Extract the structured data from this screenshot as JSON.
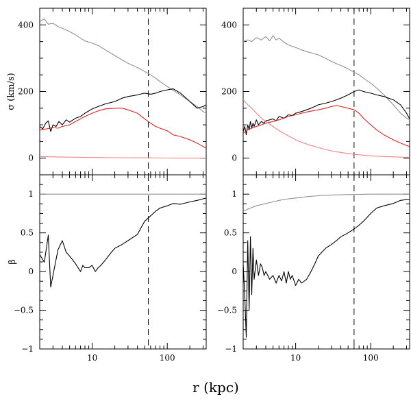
{
  "chart_data": {
    "type": "line",
    "x_scale": "log",
    "grid": false,
    "xlabel": "r (kpc)",
    "x_tick_labels": [
      "10",
      "100"
    ],
    "x_range": [
      2,
      330
    ],
    "panels": [
      {
        "id": "sigma-left",
        "ylabel": "σ (km/s)",
        "y_range": [
          -50,
          450
        ],
        "y_ticks": [
          0,
          200,
          400
        ],
        "y_tick_labels": [
          "0",
          "200",
          "400"
        ],
        "vline_x": 56,
        "series": [
          {
            "color": "#909090",
            "x": [
              2,
              2.3,
              2.6,
              3,
              3.5,
              4,
              5,
              6,
              7,
              8,
              10,
              12,
              15,
              20,
              25,
              30,
              40,
              50,
              60,
              70,
              80,
              100,
              120,
              150,
              200,
              250,
              300,
              330
            ],
            "y": [
              410,
              418,
              402,
              405,
              395,
              390,
              380,
              370,
              360,
              352,
              345,
              338,
              325,
              308,
              295,
              285,
              272,
              260,
              250,
              240,
              230,
              215,
              203,
              190,
              170,
              155,
              140,
              135
            ]
          },
          {
            "color": "#000000",
            "x": [
              2,
              2.2,
              2.4,
              2.6,
              2.8,
              3,
              3.3,
              3.6,
              4,
              4.5,
              5,
              6,
              7,
              8,
              10,
              12,
              15,
              20,
              25,
              30,
              40,
              50,
              60,
              70,
              80,
              100,
              120,
              150,
              200,
              250,
              300,
              330
            ],
            "y": [
              95,
              88,
              105,
              112,
              80,
              100,
              95,
              110,
              100,
              115,
              108,
              120,
              125,
              135,
              148,
              155,
              163,
              170,
              180,
              185,
              190,
              195,
              192,
              195,
              200,
              205,
              208,
              195,
              170,
              150,
              155,
              160
            ]
          },
          {
            "color": "#e02020",
            "x": [
              2,
              2.5,
              3,
              3.5,
              4,
              5,
              6,
              7,
              8,
              10,
              12,
              15,
              20,
              25,
              30,
              40,
              50,
              60,
              70,
              80,
              100,
              120,
              150,
              200,
              250,
              300,
              330
            ],
            "y": [
              85,
              88,
              92,
              90,
              95,
              100,
              110,
              118,
              125,
              135,
              142,
              148,
              150,
              150,
              145,
              135,
              118,
              105,
              95,
              90,
              82,
              70,
              65,
              55,
              45,
              35,
              30
            ]
          },
          {
            "color": "#f08080",
            "x": [
              2,
              3,
              5,
              10,
              20,
              50,
              100,
              200,
              330
            ],
            "y": [
              5,
              4,
              3,
              2,
              1.5,
              1,
              0.5,
              0.3,
              0.2
            ]
          }
        ]
      },
      {
        "id": "sigma-right",
        "ylabel": "",
        "y_range": [
          -50,
          450
        ],
        "y_ticks": [
          0,
          200,
          400
        ],
        "y_tick_labels": [
          "0",
          "200",
          "400"
        ],
        "vline_x": 60,
        "series": [
          {
            "color": "#909090",
            "x": [
              2,
              2.3,
              2.6,
              3,
              3.5,
              4,
              4.5,
              5,
              5.5,
              6,
              7,
              8,
              10,
              12,
              15,
              20,
              25,
              30,
              40,
              50,
              60,
              70,
              80,
              100,
              120,
              150,
              200,
              250,
              300,
              330
            ],
            "y": [
              350,
              355,
              350,
              362,
              355,
              365,
              352,
              368,
              355,
              360,
              348,
              340,
              332,
              325,
              318,
              310,
              300,
              290,
              278,
              268,
              258,
              250,
              240,
              225,
              210,
              190,
              160,
              135,
              120,
              115
            ]
          },
          {
            "color": "#000000",
            "x": [
              2,
              2.1,
              2.2,
              2.3,
              2.4,
              2.5,
              2.6,
              2.7,
              2.8,
              3,
              3.2,
              3.5,
              3.8,
              4,
              4.5,
              5,
              5.5,
              6,
              7,
              8,
              9,
              10,
              12,
              14,
              16,
              18,
              20,
              25,
              30,
              35,
              40,
              50,
              60,
              70,
              80,
              100,
              120,
              150,
              200,
              250,
              300,
              330
            ],
            "y": [
              80,
              95,
              70,
              100,
              85,
              110,
              90,
              105,
              95,
              115,
              100,
              110,
              105,
              112,
              115,
              118,
              112,
              125,
              120,
              130,
              128,
              135,
              140,
              145,
              150,
              155,
              160,
              165,
              170,
              175,
              180,
              190,
              200,
              205,
              200,
              195,
              190,
              185,
              175,
              160,
              135,
              118
            ]
          },
          {
            "color": "#e02020",
            "x": [
              2,
              2.3,
              2.6,
              3,
              3.5,
              4,
              5,
              6,
              7,
              8,
              10,
              12,
              15,
              20,
              25,
              30,
              35,
              40,
              50,
              60,
              70,
              80,
              100,
              120,
              150,
              200,
              250,
              300,
              330
            ],
            "y": [
              75,
              85,
              90,
              95,
              100,
              105,
              110,
              115,
              120,
              125,
              130,
              135,
              140,
              145,
              150,
              155,
              158,
              155,
              150,
              145,
              135,
              120,
              100,
              85,
              70,
              55,
              45,
              38,
              35
            ]
          },
          {
            "color": "#f08080",
            "x": [
              2,
              2.3,
              2.6,
              3,
              3.5,
              4,
              5,
              6,
              7,
              8,
              10,
              12,
              15,
              20,
              25,
              30,
              40,
              50,
              60,
              70,
              80,
              100,
              120,
              150,
              200,
              250,
              300,
              330
            ],
            "y": [
              175,
              160,
              150,
              135,
              120,
              110,
              95,
              83,
              74,
              67,
              55,
              48,
              40,
              32,
              26,
              22,
              17,
              14,
              12,
              10,
              9,
              7,
              6,
              5,
              4,
              3,
              2.5,
              2
            ]
          }
        ]
      },
      {
        "id": "beta-left",
        "ylabel": "β",
        "y_range": [
          -1,
          1.25
        ],
        "y_ticks": [
          -1,
          -0.5,
          0,
          0.5,
          1
        ],
        "y_tick_labels": [
          "−1",
          "−0.5",
          "0",
          "0.5",
          "1"
        ],
        "vline_x": 56,
        "series": [
          {
            "color": "#909090",
            "x": [
              2,
              330
            ],
            "y": [
              1.0,
              1.0
            ]
          },
          {
            "color": "#000000",
            "x": [
              2,
              2.3,
              2.6,
              2.8,
              3,
              3.5,
              4,
              4.5,
              5,
              5.5,
              6,
              7,
              7.5,
              8,
              9,
              10,
              11,
              12,
              13,
              15,
              18,
              20,
              25,
              30,
              40,
              50,
              60,
              70,
              80,
              100,
              120,
              150,
              200,
              250,
              300,
              330
            ],
            "y": [
              0.22,
              0.12,
              0.47,
              -0.2,
              -0.05,
              0.28,
              0.4,
              0.25,
              0.2,
              0.15,
              0.1,
              0.0,
              0.08,
              0.05,
              0.05,
              0.08,
              0.0,
              0.05,
              0.08,
              0.15,
              0.25,
              0.3,
              0.35,
              0.4,
              0.48,
              0.65,
              0.72,
              0.78,
              0.82,
              0.85,
              0.88,
              0.87,
              0.9,
              0.92,
              0.94,
              0.95
            ]
          }
        ]
      },
      {
        "id": "beta-right",
        "ylabel": "",
        "y_range": [
          -1,
          1.25
        ],
        "y_ticks": [
          -1,
          -0.5,
          0,
          0.5,
          1
        ],
        "y_tick_labels": [
          "−1",
          "−0.5",
          "0",
          "0.5",
          "1"
        ],
        "vline_x": 60,
        "series": [
          {
            "color": "#909090",
            "x": [
              2,
              2.5,
              3,
              4,
              5,
              6,
              8,
              10,
              15,
              20,
              30,
              50,
              100,
              200,
              330
            ],
            "y": [
              0.78,
              0.82,
              0.85,
              0.88,
              0.9,
              0.92,
              0.94,
              0.95,
              0.97,
              0.98,
              0.99,
              0.995,
              1.0,
              1.0,
              1.0
            ]
          },
          {
            "color": "#000000",
            "x": [
              2,
              2.1,
              2.2,
              2.3,
              2.4,
              2.5,
              2.6,
              2.7,
              2.8,
              3,
              3.2,
              3.4,
              3.6,
              3.8,
              4,
              4.5,
              5,
              5.5,
              6,
              6.5,
              7,
              7.5,
              8,
              8.5,
              9,
              10,
              11,
              12,
              14,
              16,
              18,
              20,
              25,
              30,
              35,
              40,
              50,
              60,
              70,
              80,
              100,
              120,
              150,
              200,
              250,
              300,
              330
            ],
            "y": [
              0.1,
              -0.3,
              -0.85,
              0.4,
              -0.5,
              0.45,
              -0.3,
              0.3,
              -0.1,
              0.15,
              -0.05,
              0.1,
              0.05,
              -0.05,
              0.0,
              -0.1,
              -0.05,
              -0.15,
              -0.05,
              -0.12,
              0.0,
              -0.15,
              0.0,
              -0.1,
              -0.05,
              -0.18,
              -0.1,
              -0.15,
              -0.1,
              0.0,
              0.1,
              0.2,
              0.3,
              0.35,
              0.4,
              0.45,
              0.5,
              0.55,
              0.6,
              0.65,
              0.75,
              0.82,
              0.85,
              0.88,
              0.92,
              0.93,
              0.93
            ]
          }
        ]
      }
    ]
  }
}
